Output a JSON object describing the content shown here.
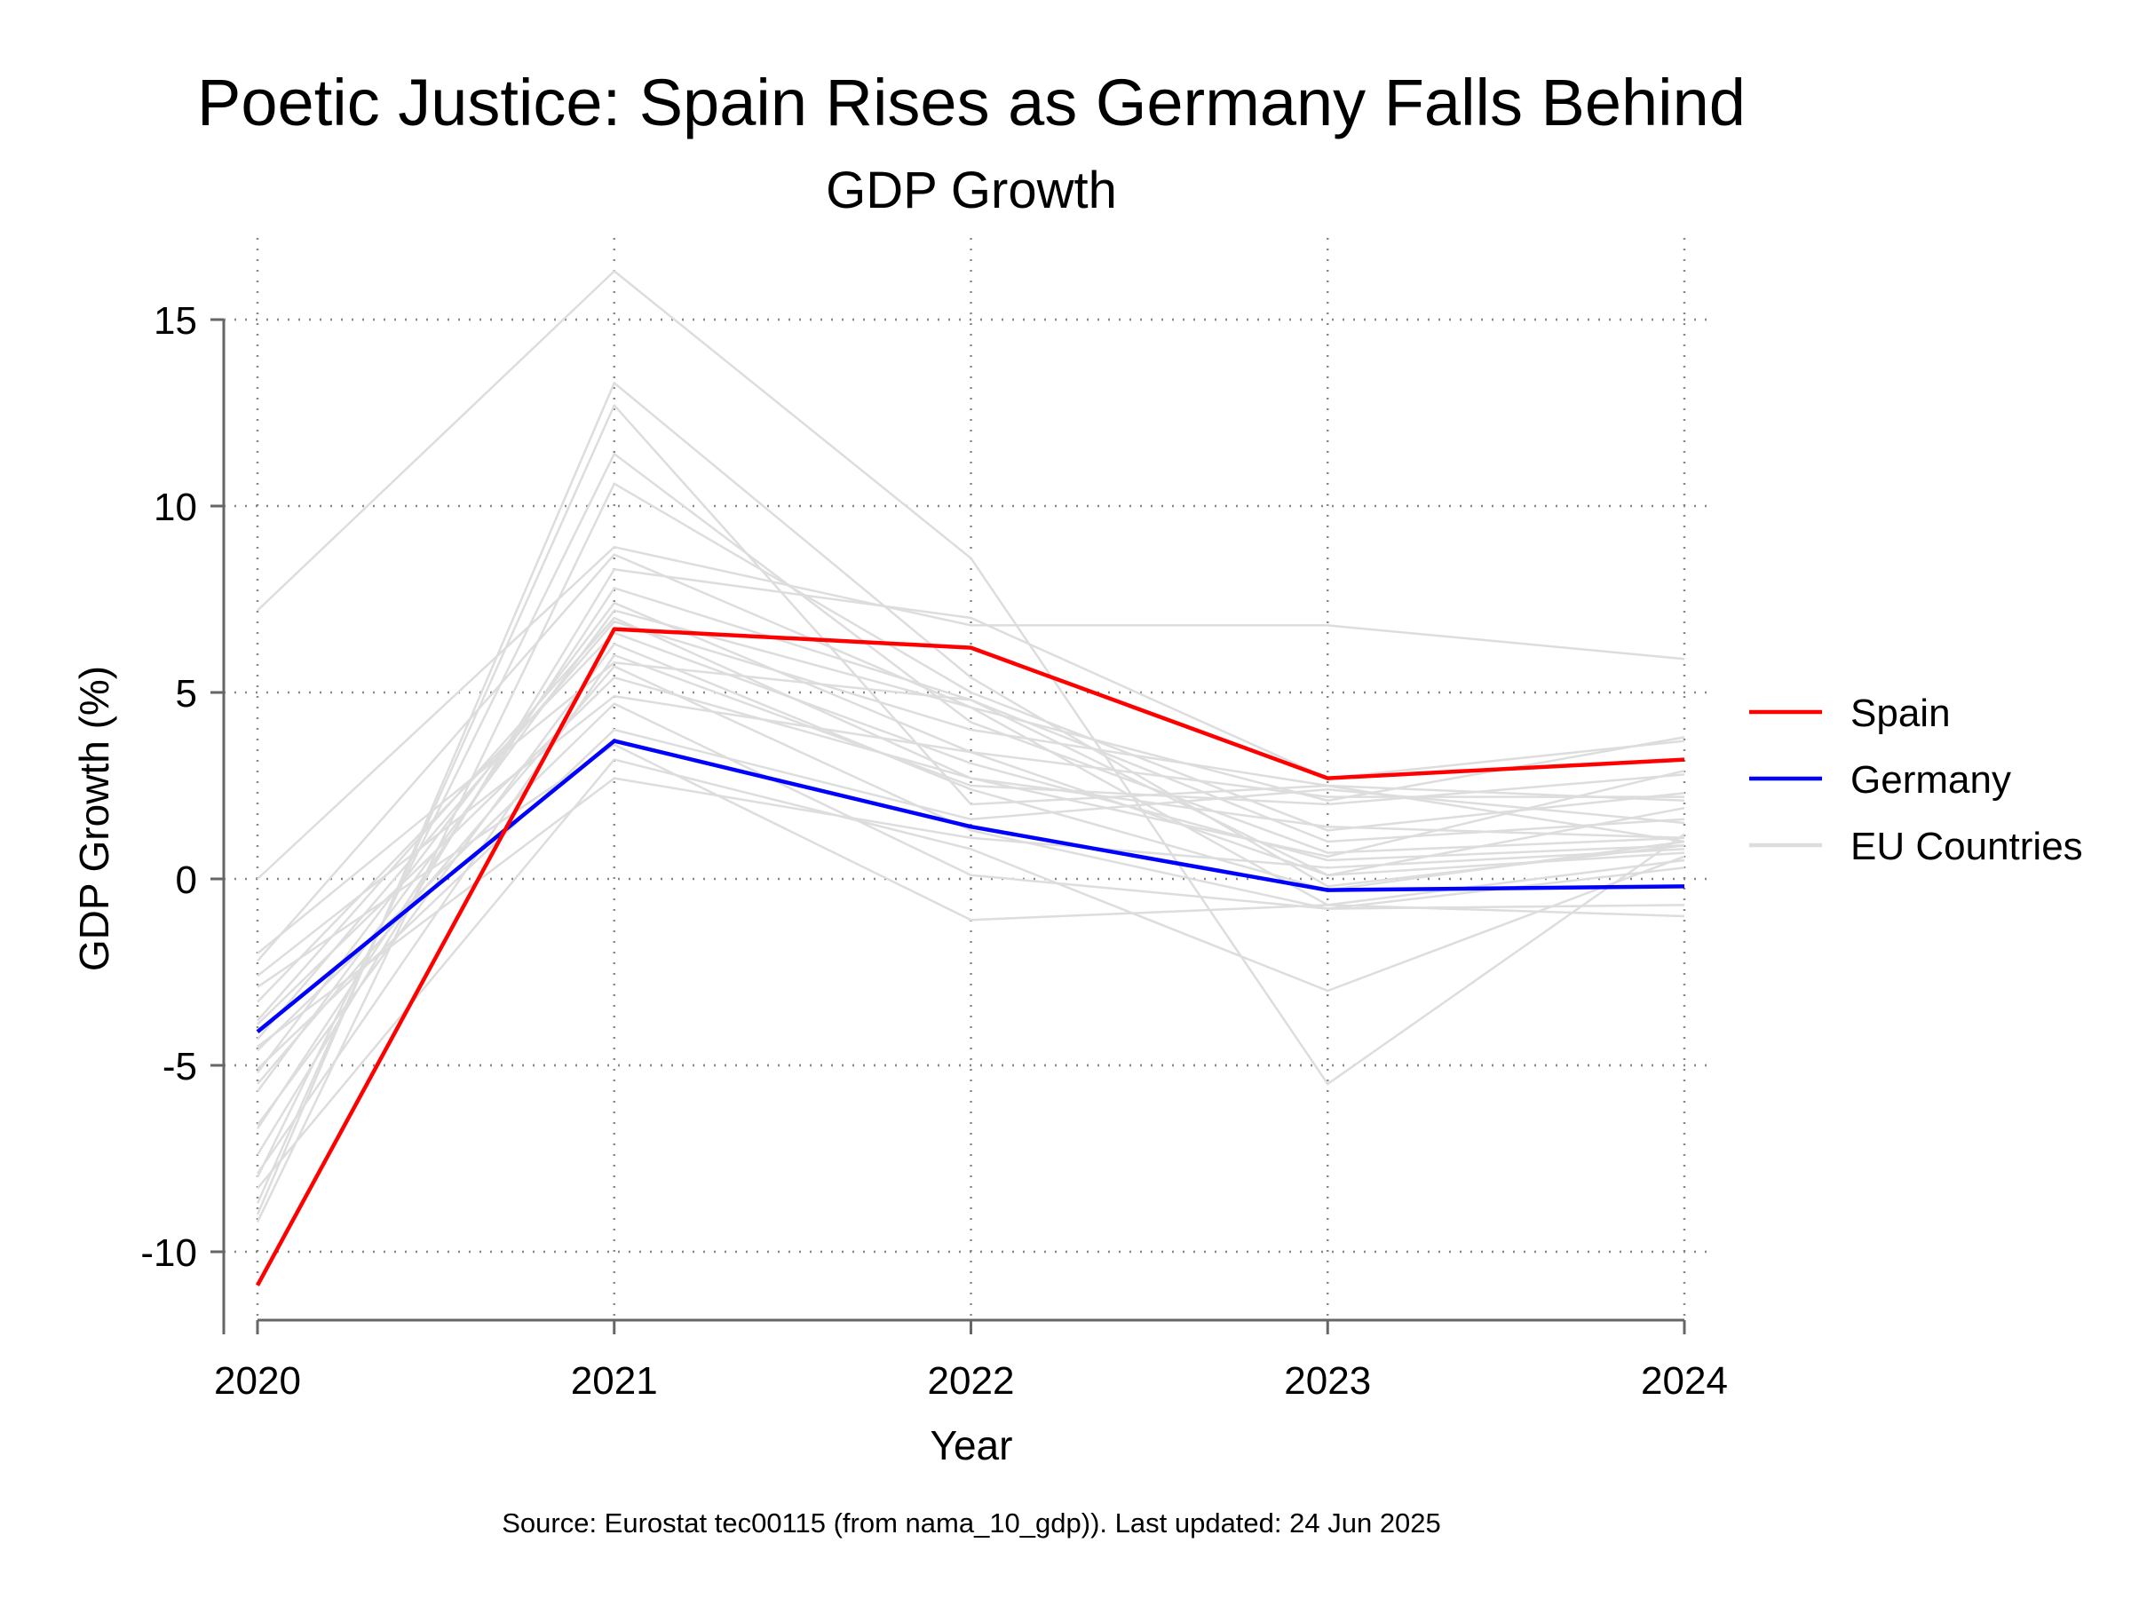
{
  "chart_data": {
    "type": "line",
    "title": "Poetic Justice: Spain Rises as Germany Falls Behind",
    "subtitle": "GDP Growth",
    "xlabel": "Year",
    "ylabel": "GDP Growth (%)",
    "x": [
      2020,
      2021,
      2022,
      2023,
      2024
    ],
    "x_tick_labels": [
      "2020",
      "2021",
      "2022",
      "2023",
      "2024"
    ],
    "y_ticks": [
      15,
      10,
      5,
      0,
      -5,
      -10
    ],
    "y_tick_labels": [
      "15",
      "10",
      "5",
      "0",
      "-5",
      "-10"
    ],
    "ylim": [
      -12,
      17
    ],
    "grid": true,
    "legend_position": "right",
    "series": [
      {
        "name": "Spain",
        "color": "#ff0000",
        "values": [
          -10.9,
          6.7,
          6.2,
          2.7,
          3.2
        ]
      },
      {
        "name": "Germany",
        "color": "#0000ff",
        "values": [
          -4.1,
          3.7,
          1.4,
          -0.3,
          -0.2
        ]
      }
    ],
    "background_series": {
      "name": "EU Countries",
      "color": "#dddddd",
      "lines": [
        [
          7.2,
          16.3,
          8.6,
          -5.5,
          1.2
        ],
        [
          -9.0,
          13.3,
          5.4,
          -0.2,
          0.9
        ],
        [
          -8.7,
          12.7,
          2.0,
          2.5,
          1.0
        ],
        [
          -8.0,
          11.4,
          4.2,
          0.7,
          1.1
        ],
        [
          -9.2,
          10.6,
          5.0,
          1.3,
          2.3
        ],
        [
          0.0,
          8.9,
          6.8,
          6.8,
          5.9
        ],
        [
          -2.2,
          8.7,
          4.6,
          2.1,
          3.8
        ],
        [
          -7.4,
          8.3,
          7.0,
          2.7,
          3.7
        ],
        [
          -6.7,
          7.8,
          4.8,
          1.0,
          1.6
        ],
        [
          -5.2,
          7.4,
          3.4,
          0.1,
          1.9
        ],
        [
          -5.7,
          7.2,
          4.6,
          -0.7,
          0.5
        ],
        [
          -3.8,
          7.0,
          2.7,
          1.4,
          1.1
        ],
        [
          -4.3,
          6.9,
          4.0,
          2.5,
          2.1
        ],
        [
          -3.3,
          6.6,
          3.1,
          0.5,
          0.9
        ],
        [
          -6.6,
          6.3,
          2.4,
          -0.3,
          1.0
        ],
        [
          -7.9,
          6.0,
          2.5,
          2.0,
          2.8
        ],
        [
          -2.0,
          5.8,
          4.8,
          0.1,
          0.7
        ],
        [
          -5.5,
          5.7,
          1.3,
          -0.8,
          0.3
        ],
        [
          -3.9,
          5.4,
          2.7,
          0.6,
          2.9
        ],
        [
          -2.6,
          4.9,
          3.4,
          2.2,
          2.2
        ],
        [
          -4.6,
          4.7,
          0.1,
          -0.8,
          -0.7
        ],
        [
          -5.1,
          4.0,
          1.6,
          2.4,
          1.5
        ],
        [
          -2.9,
          3.6,
          -1.1,
          -0.7,
          -1.0
        ],
        [
          -8.3,
          3.2,
          0.8,
          -3.0,
          0.6
        ],
        [
          -4.5,
          2.7,
          1.1,
          0.3,
          0.8
        ]
      ]
    }
  },
  "caption": "Source: Eurostat tec00115 (from nama_10_gdp)). Last updated: 24 Jun 2025"
}
